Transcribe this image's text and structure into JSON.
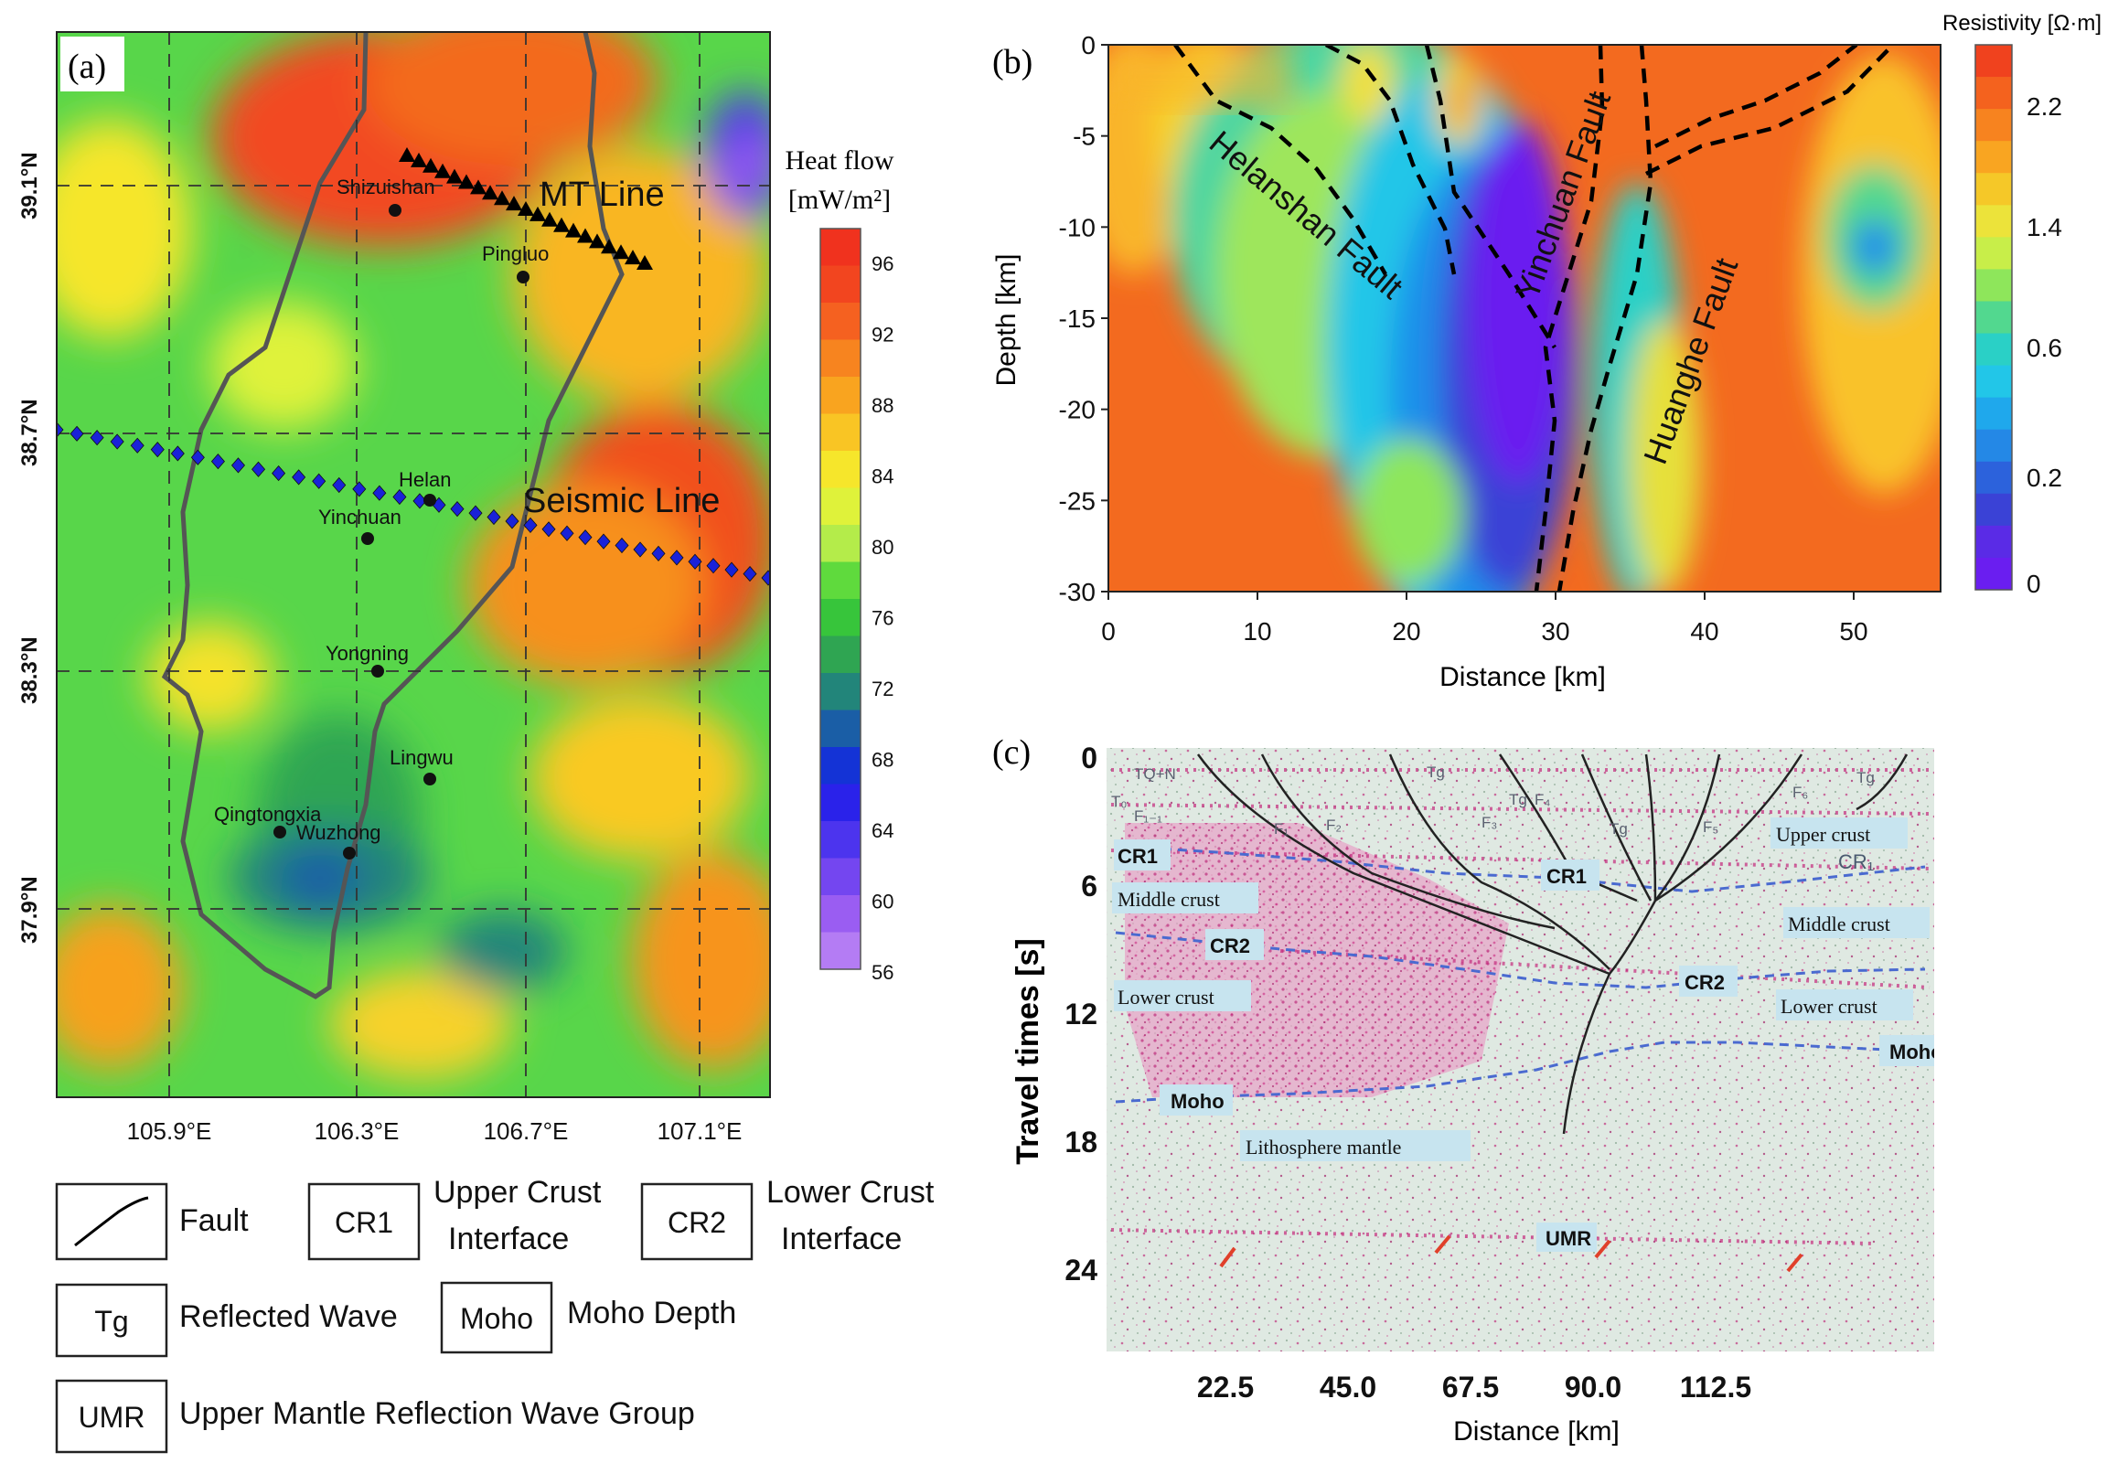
{
  "panel_a": {
    "label": "(a)",
    "lon_ticks": [
      "105.9°E",
      "106.3°E",
      "106.7°E",
      "107.1°E"
    ],
    "lat_ticks": [
      "39.1°N",
      "38.7°N",
      "38.3°N",
      "37.9°N"
    ],
    "line_labels": {
      "mt": "MT Line",
      "seismic": "Seismic Line"
    },
    "cities": [
      "Shizuishan",
      "Pingluo",
      "Helan",
      "Yinchuan",
      "Yongning",
      "Lingwu",
      "Qingtongxia",
      "Wuzhong"
    ],
    "colorbar": {
      "title_line1": "Heat flow",
      "title_line2": "[mW/m²]",
      "ticks": [
        "96",
        "92",
        "88",
        "84",
        "80",
        "76",
        "72",
        "68",
        "64",
        "60",
        "56"
      ],
      "colors": [
        "#f0321e",
        "#f2451f",
        "#f56120",
        "#f7841f",
        "#f9a41f",
        "#f9c524",
        "#f6e62b",
        "#dff23a",
        "#b4ec4a",
        "#5fda3d",
        "#37c53b",
        "#2fa552",
        "#22857a",
        "#1a5ea6",
        "#1433d6",
        "#2a22ea",
        "#4c34ee",
        "#7446f0",
        "#9a5df2",
        "#b47cf4"
      ]
    }
  },
  "panel_b": {
    "label": "(b)",
    "colorbar_title": "Resistivity [Ω·m]",
    "colorbar_ticks": [
      "2.2",
      "1.4",
      "0.6",
      "0.2",
      "0"
    ],
    "colors": [
      "#f0421e",
      "#f4621e",
      "#f7831f",
      "#f9a521",
      "#f5c828",
      "#ece33a",
      "#c8ee49",
      "#8ee65b",
      "#52d88f",
      "#2ad0c6",
      "#22c6e8",
      "#1fa8ec",
      "#2488e6",
      "#2c62dc",
      "#3a42d6",
      "#5a2be6",
      "#6a1ef0"
    ],
    "x_ticks": [
      "0",
      "10",
      "20",
      "30",
      "40",
      "50"
    ],
    "y_ticks": [
      "0",
      "-5",
      "-10",
      "-15",
      "-20",
      "-25",
      "-30"
    ],
    "xlabel": "Distance [km]",
    "ylabel": "Depth [km]",
    "fault_labels": [
      "Helanshan Fault",
      "Yinchuan Fault",
      "Huanghe Fault"
    ]
  },
  "panel_c": {
    "label": "(c)",
    "y_ticks": [
      "0",
      "6",
      "12",
      "18",
      "24"
    ],
    "x_ticks": [
      "22.5",
      "45.0",
      "67.5",
      "90.0",
      "112.5"
    ],
    "xlabel": "Distance [km]",
    "ylabel": "Travel times [s]",
    "annotations": {
      "cr1_left": "CR1",
      "cr1_mid": "CR1",
      "cr1_right": "CR₁",
      "cr2_left": "CR2",
      "cr2_mid": "CR2",
      "upper_crust": "Upper crust",
      "middle_left": "Middle crust",
      "middle_right": "Middle crust",
      "lower_left": "Lower crust",
      "lower_right": "Lower crust",
      "moho_left": "Moho",
      "moho_right": "Moho",
      "mantle": "Lithosphere mantle",
      "umr": "UMR",
      "tq": "TQ+N",
      "t0_left": "T₀",
      "tg1": "Tg",
      "tg2": "Tg",
      "tg3": "Tg",
      "tg4": "Tg",
      "f1a": "F₁₋₁",
      "f1b": "F₁",
      "f2": "F₂",
      "f3": "F₃",
      "f4": "F₄",
      "f5": "F₅",
      "f6": "F₆"
    }
  },
  "legend": {
    "fault": "Fault",
    "cr1_box": "CR1",
    "cr1_text_1": "Upper Crust",
    "cr1_text_2": "Interface",
    "cr2_box": "CR2",
    "cr2_text_1": "Lower Crust",
    "cr2_text_2": "Interface",
    "tg_box": "Tg",
    "tg_text": "Reflected Wave",
    "moho_box": "Moho",
    "moho_text": "Moho Depth",
    "umr_box": "UMR",
    "umr_text": "Upper Mantle Reflection Wave Group"
  }
}
